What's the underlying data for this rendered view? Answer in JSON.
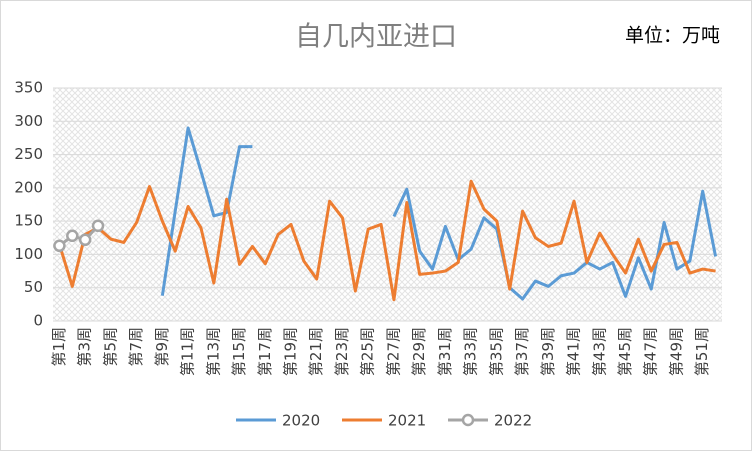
{
  "chart_data": {
    "type": "line",
    "title": "自几内亚进口",
    "annotation": "单位：万吨",
    "categories": [
      "第1周",
      null,
      "第3周",
      null,
      "第5周",
      null,
      "第7周",
      null,
      "第9周",
      null,
      "第11周",
      null,
      "第13周",
      null,
      "第15周",
      null,
      "第17周",
      null,
      "第19周",
      null,
      "第21周",
      null,
      "第23周",
      null,
      "第25周",
      null,
      "第27周",
      null,
      "第29周",
      null,
      "第31周",
      null,
      "第33周",
      null,
      "第35周",
      null,
      "第37周",
      null,
      "第39周",
      null,
      "第41周",
      null,
      "第43周",
      null,
      "第45周",
      null,
      "第47周",
      null,
      "第49周",
      null,
      "第51周",
      null
    ],
    "series": [
      {
        "name": "2020",
        "color": "#5b9bd5",
        "marker": false,
        "values": [
          null,
          null,
          null,
          null,
          null,
          null,
          null,
          null,
          38,
          165,
          290,
          225,
          158,
          163,
          262,
          262,
          null,
          null,
          null,
          null,
          null,
          null,
          null,
          null,
          null,
          null,
          157,
          198,
          105,
          78,
          142,
          92,
          108,
          155,
          138,
          50,
          33,
          60,
          52,
          68,
          72,
          88,
          78,
          88,
          37,
          95,
          48,
          148,
          78,
          90,
          195,
          97
        ]
      },
      {
        "name": "2021",
        "color": "#ed7d31",
        "marker": false,
        "values": [
          115,
          52,
          130,
          140,
          123,
          118,
          148,
          202,
          150,
          105,
          172,
          140,
          57,
          183,
          85,
          112,
          86,
          130,
          145,
          90,
          63,
          180,
          155,
          45,
          138,
          145,
          32,
          178,
          70,
          72,
          75,
          88,
          210,
          168,
          150,
          48,
          165,
          125,
          112,
          117,
          180,
          88,
          132,
          100,
          72,
          123,
          75,
          115,
          118,
          72,
          78,
          75
        ]
      },
      {
        "name": "2022",
        "color": "#a5a5a5",
        "marker": true,
        "values": [
          113,
          128,
          122,
          143,
          null,
          null,
          null,
          null,
          null,
          null,
          null,
          null,
          null,
          null,
          null,
          null,
          null,
          null,
          null,
          null,
          null,
          null,
          null,
          null,
          null,
          null,
          null,
          null,
          null,
          null,
          null,
          null,
          null,
          null,
          null,
          null,
          null,
          null,
          null,
          null,
          null,
          null,
          null,
          null,
          null,
          null,
          null,
          null,
          null,
          null,
          null,
          null
        ]
      }
    ],
    "ylim": [
      0,
      350
    ],
    "yticks": [
      0,
      50,
      100,
      150,
      200,
      250,
      300,
      350
    ],
    "grid": true,
    "legend": "bottom"
  }
}
